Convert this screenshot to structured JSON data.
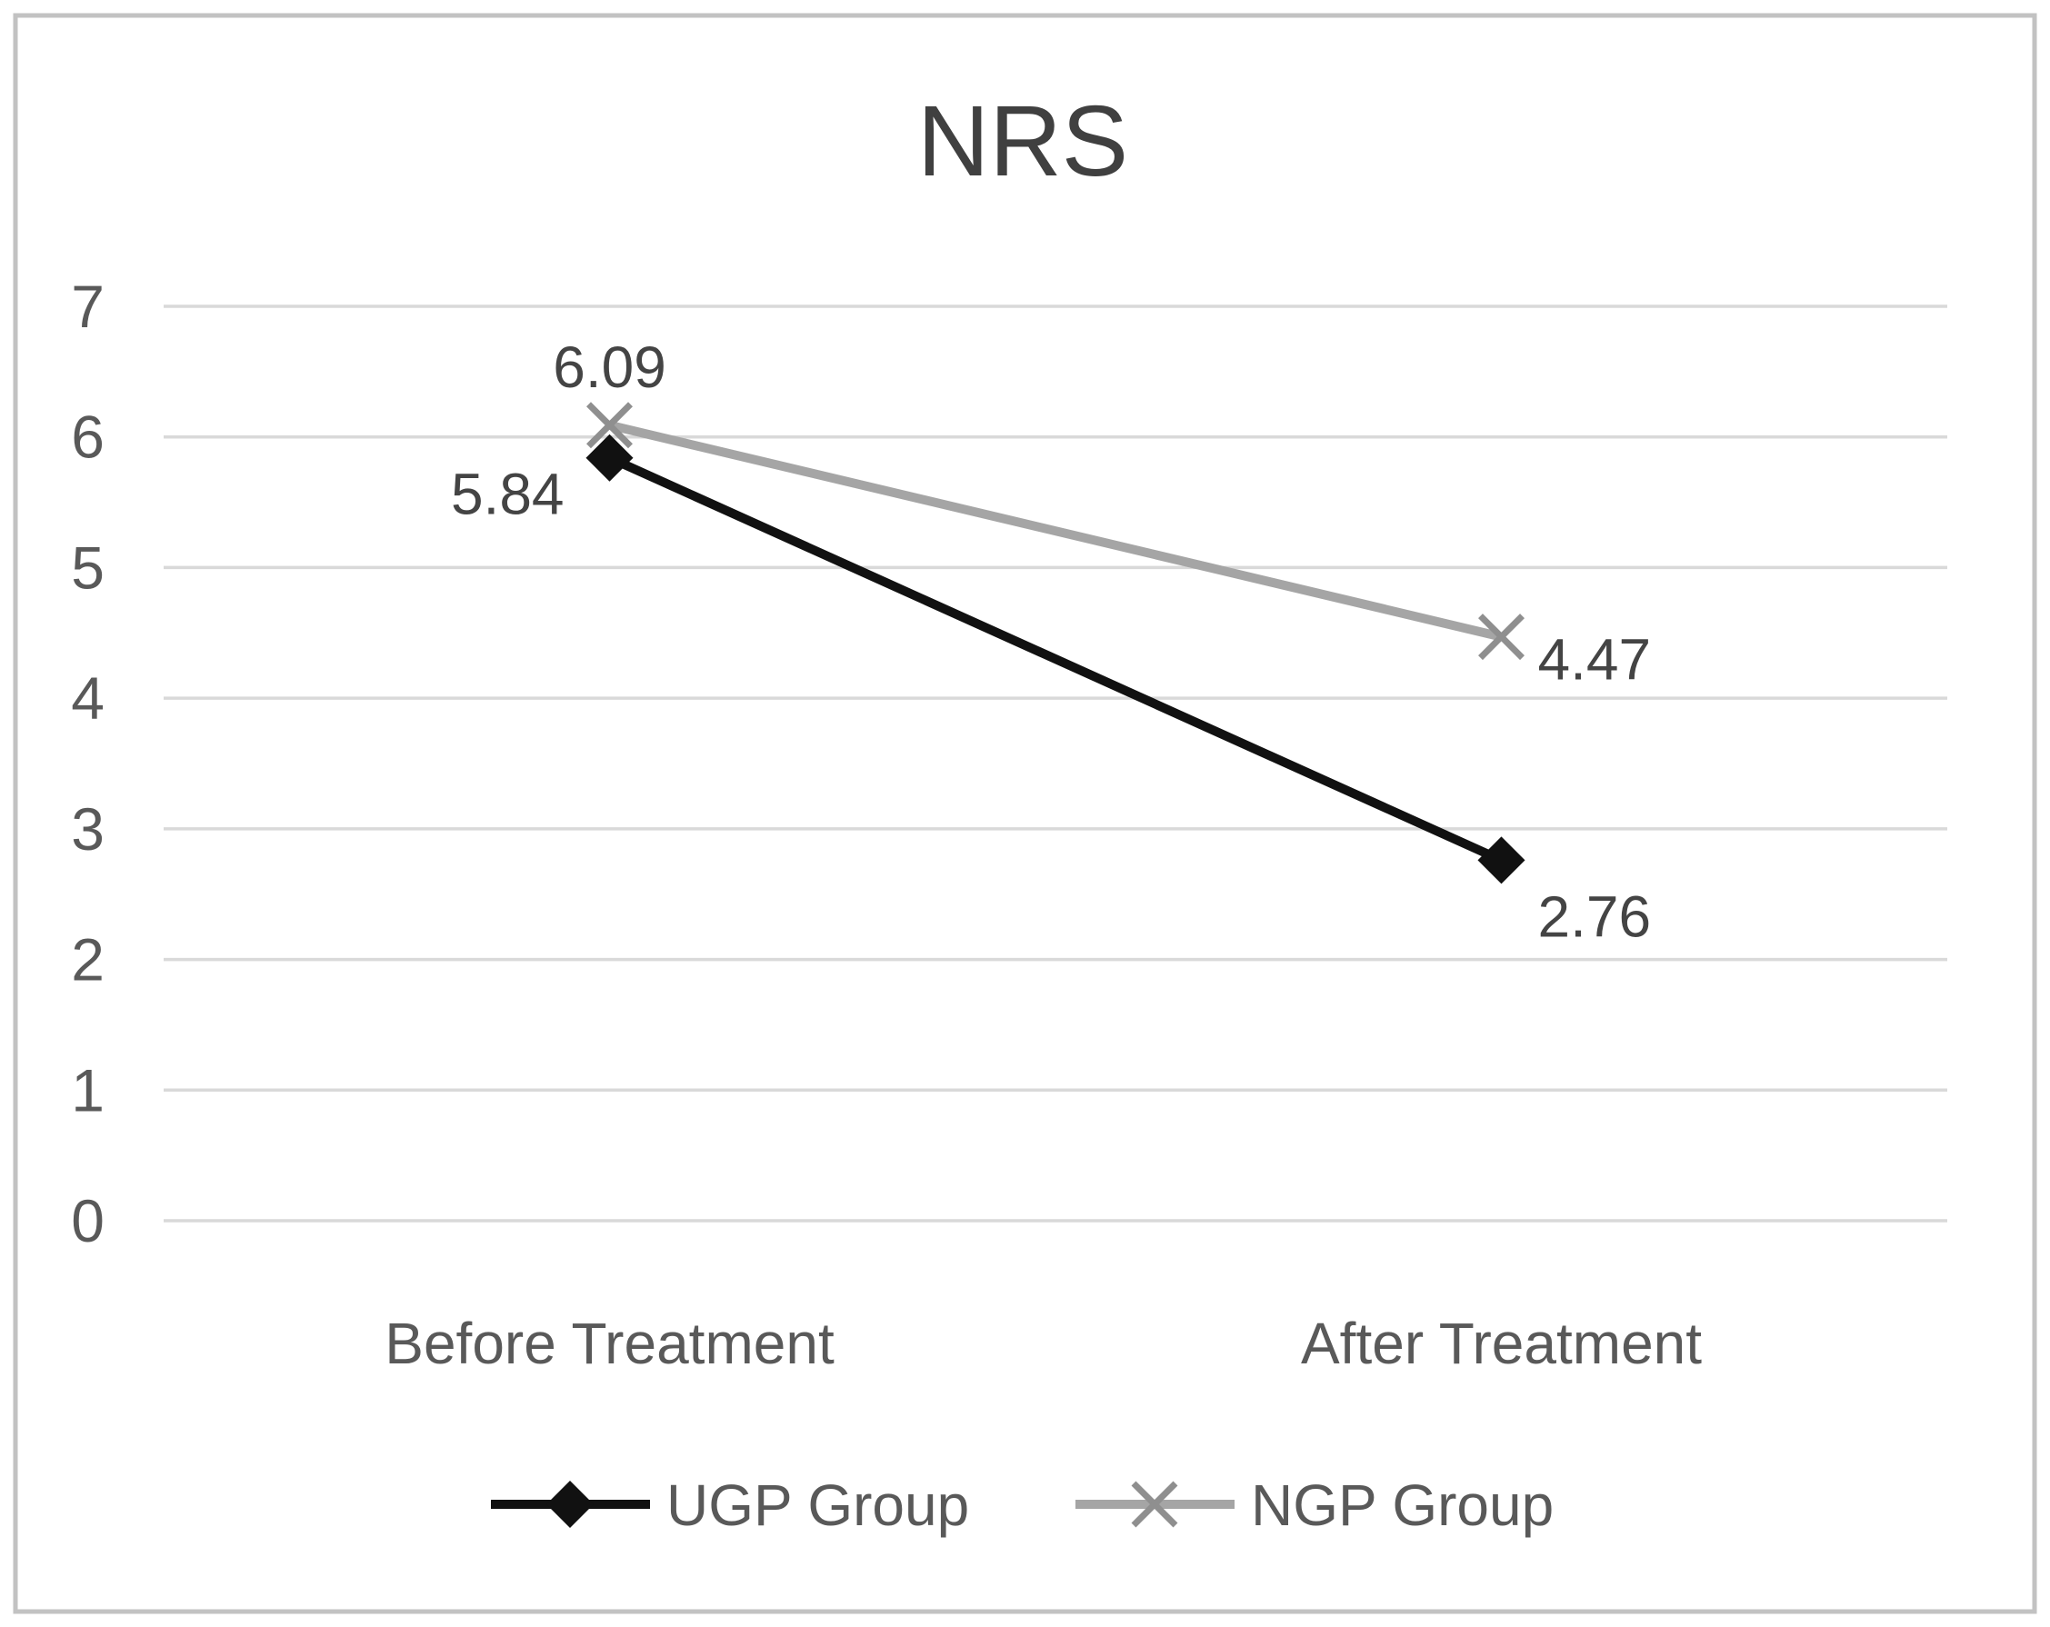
{
  "window": {
    "background": "#ffffff",
    "border_color": "#c2c2c2"
  },
  "chart_data": {
    "type": "line",
    "title": "NRS",
    "categories": [
      "Before Treatment",
      "After Treatment"
    ],
    "series": [
      {
        "name": "UGP Group",
        "values": [
          5.84,
          2.76
        ],
        "data_labels": [
          "5.84",
          "2.76"
        ],
        "label_positions": [
          "left-below",
          "right-below"
        ],
        "color": "#111111",
        "marker": "diamond",
        "marker_color": "#111111"
      },
      {
        "name": "NGP Group",
        "values": [
          6.09,
          4.47
        ],
        "data_labels": [
          "6.09",
          "4.47"
        ],
        "label_positions": [
          "above",
          "right"
        ],
        "color": "#a5a5a5",
        "marker": "x",
        "marker_color": "#8f8f8f"
      }
    ],
    "xlabel": "",
    "ylabel": "",
    "ylim": [
      0,
      7
    ],
    "yticks": [
      0,
      1,
      2,
      3,
      4,
      5,
      6,
      7
    ],
    "grid": true,
    "gridline_color": "#d9d9d9",
    "tick_label_color": "#595959",
    "category_label_color": "#595959",
    "title_color": "#404040",
    "data_label_color": "#444444",
    "legend_text_color": "#595959",
    "legend_position": "bottom"
  }
}
